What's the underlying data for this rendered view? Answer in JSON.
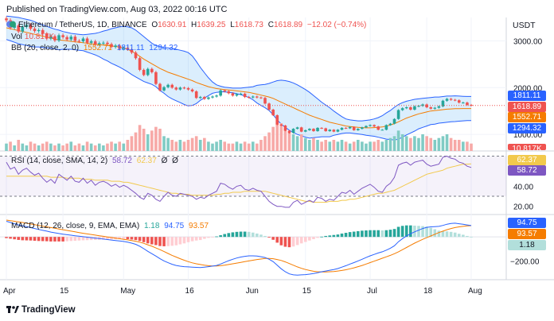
{
  "header": {
    "published": "Published on TradingView.com, Aug 03, 2022 00:16 UTC"
  },
  "currency": "USDT",
  "legend": {
    "pair": "Ethereum / TetherUS, 1D, BINANCE",
    "ohlc": [
      {
        "k": "O",
        "v": "1630.91"
      },
      {
        "k": "H",
        "v": "1639.25"
      },
      {
        "k": "L",
        "v": "1618.73"
      },
      {
        "k": "C",
        "v": "1618.89"
      }
    ],
    "change": "−12.02 (−0.74%)",
    "vol_label": "Vol",
    "vol_value": "10.817K",
    "bb_label": "BB (20, close, 2, 0)",
    "bb_values": [
      "1552.71",
      "1811.11",
      "1294.32"
    ],
    "rsi_label": "RSI (14, close, SMA, 14, 2)",
    "rsi_values": [
      "58.72",
      "62.37",
      "Ø",
      "Ø"
    ],
    "macd_label": "MACD (12, 26, close, 9, EMA, EMA)",
    "macd_values": [
      "1.18",
      "94.75",
      "93.57"
    ]
  },
  "price_tags": [
    {
      "text": "1811.11",
      "color": "#2962ff"
    },
    {
      "text": "1618.89",
      "color": "#ef5350"
    },
    {
      "text": "1552.71",
      "color": "#f57c00"
    },
    {
      "text": "1294.32",
      "color": "#2962ff"
    },
    {
      "text": "10.817K",
      "color": "#ef5350"
    }
  ],
  "rsi_tags": [
    {
      "text": "62.37",
      "color": "#f2c94c"
    },
    {
      "text": "58.72",
      "color": "#7e57c2"
    }
  ],
  "macd_tags": [
    {
      "text": "94.75",
      "color": "#2962ff"
    },
    {
      "text": "93.57",
      "color": "#f57c00"
    },
    {
      "text": "1.18",
      "color": "#b2dfdb"
    }
  ],
  "brand": "TradingView",
  "colors": {
    "up": "#26a69a",
    "down": "#ef5350",
    "bb_band": "#2962ff",
    "bb_basis": "#f57c00",
    "bb_fill": "#2196f3",
    "rsi": "#7e57c2",
    "rsi_ma": "#f2c94c",
    "macd": "#2962ff",
    "signal": "#f57c00"
  },
  "chart_data": [
    {
      "type": "candlestick",
      "title": "Ethereum / TetherUS, 1D, BINANCE",
      "x_tick_labels": [
        "Apr",
        "15",
        "May",
        "16",
        "Jun",
        "15",
        "Jul",
        "18",
        "Aug"
      ],
      "y_tick_labels": [
        "3000.00",
        "2000.00",
        "1000.00"
      ],
      "ylim": [
        850,
        3500
      ],
      "close": [
        3440,
        3280,
        3330,
        3200,
        3300,
        3340,
        3260,
        3210,
        3230,
        3150,
        3050,
        3100,
        3010,
        3120,
        3080,
        3030,
        3090,
        3000,
        2990,
        3050,
        2960,
        2990,
        2920,
        2950,
        2960,
        2930,
        2870,
        2900,
        2830,
        2850,
        2820,
        2750,
        2630,
        2380,
        2270,
        2400,
        2330,
        2080,
        1940,
        2010,
        2060,
        2000,
        1960,
        2000,
        1990,
        1960,
        1920,
        1780,
        1800,
        1760,
        1790,
        1810,
        1830,
        1940,
        1920,
        1880,
        1830,
        1860,
        1870,
        1800,
        1790,
        1810,
        1790,
        1780,
        1660,
        1530,
        1410,
        1210,
        1190,
        1080,
        1030,
        1120,
        1150,
        1060,
        1090,
        1120,
        1070,
        1140,
        1130,
        1070,
        1100,
        1060,
        1100,
        1140,
        1130,
        1160,
        1090,
        1120,
        1150,
        1180,
        1200,
        1170,
        1100,
        1100,
        1200,
        1230,
        1330,
        1520,
        1560,
        1580,
        1530,
        1600,
        1610,
        1640,
        1580,
        1550,
        1570,
        1600,
        1720,
        1760,
        1740,
        1730,
        1680,
        1680,
        1630,
        1618.89
      ],
      "bb_upper": [
        3530,
        3520,
        3510,
        3500,
        3480,
        3460,
        3440,
        3410,
        3370,
        3340,
        3310,
        3280,
        3250,
        3230,
        3200,
        3180,
        3160,
        3150,
        3140,
        3130,
        3140,
        3150,
        3160,
        3180,
        3210,
        3230,
        3260,
        3280,
        3300,
        3310,
        3300,
        3280,
        3230,
        3160,
        3090,
        3020,
        2950,
        2900,
        2880,
        2860,
        2850,
        2840,
        2820,
        2800,
        2780,
        2750,
        2680,
        2560,
        2430,
        2320,
        2210,
        2120,
        2060,
        2030,
        2010,
        2000,
        1990,
        1990,
        1990,
        2000,
        2010,
        2020,
        2050,
        2060,
        2070,
        2090,
        2120,
        2150,
        2160,
        2150,
        2130,
        2100,
        2060,
        2010,
        1960,
        1900,
        1830,
        1760,
        1690,
        1630,
        1570,
        1500,
        1440,
        1380,
        1330,
        1310,
        1300,
        1290,
        1290,
        1300,
        1310,
        1330,
        1360,
        1400,
        1460,
        1510,
        1580,
        1640,
        1680,
        1710,
        1730,
        1750,
        1760,
        1770,
        1780,
        1790,
        1800,
        1800,
        1810,
        1820,
        1820,
        1825,
        1820,
        1815,
        1811.11,
        1811.11
      ],
      "bb_basis": [
        3280,
        3260,
        3240,
        3220,
        3200,
        3180,
        3160,
        3140,
        3120,
        3100,
        3080,
        3060,
        3040,
        3020,
        3010,
        3000,
        2990,
        2980,
        2970,
        2960,
        2950,
        2940,
        2930,
        2920,
        2910,
        2900,
        2890,
        2880,
        2870,
        2850,
        2820,
        2780,
        2730,
        2670,
        2610,
        2560,
        2510,
        2460,
        2410,
        2370,
        2330,
        2300,
        2270,
        2240,
        2210,
        2180,
        2150,
        2110,
        2080,
        2050,
        2020,
        2000,
        1980,
        1970,
        1960,
        1950,
        1940,
        1930,
        1920,
        1910,
        1900,
        1880,
        1860,
        1840,
        1820,
        1800,
        1770,
        1730,
        1690,
        1650,
        1610,
        1570,
        1530,
        1490,
        1450,
        1410,
        1380,
        1350,
        1320,
        1290,
        1260,
        1240,
        1220,
        1200,
        1180,
        1170,
        1160,
        1150,
        1145,
        1140,
        1140,
        1145,
        1150,
        1160,
        1180,
        1200,
        1230,
        1270,
        1310,
        1350,
        1380,
        1410,
        1440,
        1460,
        1480,
        1500,
        1510,
        1520,
        1530,
        1540,
        1545,
        1550,
        1552,
        1552.71,
        1552.71,
        1552.71
      ],
      "bb_lower": [
        3030,
        3000,
        2970,
        2940,
        2920,
        2900,
        2880,
        2870,
        2870,
        2860,
        2850,
        2840,
        2830,
        2810,
        2820,
        2820,
        2820,
        2810,
        2800,
        2790,
        2760,
        2730,
        2700,
        2660,
        2610,
        2570,
        2520,
        2480,
        2440,
        2390,
        2340,
        2280,
        2230,
        2180,
        2130,
        2100,
        2070,
        2020,
        1940,
        1880,
        1810,
        1760,
        1720,
        1680,
        1640,
        1610,
        1620,
        1660,
        1730,
        1780,
        1830,
        1880,
        1900,
        1910,
        1910,
        1900,
        1890,
        1870,
        1850,
        1820,
        1790,
        1740,
        1670,
        1620,
        1570,
        1510,
        1420,
        1310,
        1220,
        1150,
        1090,
        1040,
        1000,
        970,
        940,
        920,
        930,
        940,
        950,
        950,
        950,
        980,
        1000,
        1020,
        1030,
        1030,
        1020,
        1010,
        1000,
        980,
        970,
        960,
        940,
        920,
        900,
        890,
        880,
        900,
        940,
        990,
        1030,
        1070,
        1120,
        1150,
        1180,
        1210,
        1220,
        1240,
        1250,
        1260,
        1270,
        1275,
        1284,
        1290,
        1294.32,
        1294.32
      ],
      "volume": [
        4,
        5,
        3,
        6,
        4,
        3,
        5,
        4,
        3,
        4,
        5,
        4,
        3,
        4,
        3,
        4,
        5,
        3,
        4,
        3,
        5,
        4,
        3,
        4,
        3,
        4,
        5,
        4,
        5,
        4,
        6,
        8,
        10,
        14,
        12,
        9,
        11,
        13,
        12,
        8,
        7,
        6,
        5,
        6,
        5,
        6,
        7,
        8,
        6,
        7,
        5,
        4,
        5,
        6,
        5,
        4,
        4,
        5,
        4,
        5,
        4,
        5,
        4,
        6,
        8,
        10,
        13,
        18,
        15,
        12,
        10,
        9,
        8,
        9,
        7,
        6,
        7,
        6,
        5,
        6,
        5,
        6,
        5,
        6,
        5,
        4,
        5,
        6,
        5,
        4,
        5,
        5,
        6,
        5,
        6,
        7,
        8,
        11,
        9,
        8,
        7,
        8,
        7,
        9,
        8,
        7,
        6,
        7,
        8,
        9,
        7,
        6,
        6,
        5,
        5,
        4
      ],
      "volume_unit": "K (relative)"
    },
    {
      "type": "line",
      "title": "RSI (14, close, SMA, 14, 2)",
      "y_tick_labels": [
        "60.00",
        "40.00",
        "20.00"
      ],
      "ylim": [
        15,
        72
      ],
      "bands": [
        70,
        30
      ],
      "series": [
        {
          "name": "RSI",
          "values": [
            64,
            57,
            59,
            52,
            56,
            58,
            54,
            51,
            53,
            48,
            44,
            47,
            43,
            52,
            49,
            46,
            50,
            45,
            44,
            48,
            43,
            46,
            41,
            44,
            45,
            43,
            40,
            42,
            39,
            41,
            39,
            36,
            33,
            29,
            27,
            33,
            31,
            27,
            25,
            30,
            34,
            31,
            30,
            33,
            32,
            31,
            30,
            27,
            29,
            28,
            31,
            33,
            35,
            43,
            42,
            39,
            37,
            40,
            41,
            37,
            36,
            38,
            36,
            35,
            30,
            25,
            22,
            20,
            20,
            19,
            19,
            24,
            26,
            22,
            24,
            26,
            24,
            29,
            28,
            25,
            27,
            26,
            30,
            34,
            33,
            36,
            32,
            35,
            38,
            40,
            42,
            39,
            35,
            34,
            40,
            43,
            49,
            61,
            63,
            64,
            61,
            64,
            65,
            66,
            62,
            60,
            61,
            62,
            69,
            70,
            68,
            67,
            64,
            63,
            60,
            58.72
          ]
        },
        {
          "name": "RSI MA",
          "values": [
            50,
            50,
            50,
            50,
            50,
            50,
            50,
            50,
            50,
            50,
            50,
            49,
            49,
            49,
            49,
            48,
            48,
            48,
            48,
            47,
            47,
            47,
            46,
            46,
            46,
            46,
            45,
            45,
            45,
            44,
            44,
            43,
            42,
            41,
            40,
            39,
            38,
            37,
            36,
            35,
            34,
            33,
            33,
            32,
            32,
            32,
            31,
            31,
            31,
            31,
            31,
            31,
            32,
            32,
            33,
            33,
            34,
            34,
            34,
            35,
            35,
            35,
            35,
            35,
            35,
            34,
            33,
            32,
            31,
            30,
            29,
            28,
            27,
            26,
            25,
            25,
            24,
            24,
            24,
            24,
            25,
            25,
            25,
            26,
            26,
            27,
            27,
            28,
            29,
            30,
            31,
            32,
            33,
            33,
            34,
            35,
            36,
            38,
            40,
            42,
            44,
            46,
            48,
            50,
            52,
            53,
            54,
            55,
            56,
            58,
            59,
            60,
            61,
            62,
            62,
            62.37
          ]
        }
      ]
    },
    {
      "type": "line",
      "title": "MACD (12, 26, close, 9, EMA, EMA)",
      "y_tick_labels": [
        "−200.00"
      ],
      "ylim": [
        -330,
        160
      ],
      "series": [
        {
          "name": "MACD",
          "values": [
            130,
            120,
            110,
            100,
            92,
            85,
            78,
            70,
            62,
            55,
            48,
            40,
            34,
            28,
            22,
            18,
            14,
            10,
            6,
            2,
            -2,
            -6,
            -10,
            -14,
            -18,
            -22,
            -26,
            -30,
            -34,
            -38,
            -44,
            -52,
            -62,
            -78,
            -98,
            -120,
            -140,
            -160,
            -182,
            -200,
            -215,
            -228,
            -238,
            -244,
            -248,
            -250,
            -252,
            -254,
            -256,
            -252,
            -248,
            -243,
            -238,
            -226,
            -212,
            -198,
            -186,
            -176,
            -168,
            -162,
            -158,
            -158,
            -160,
            -165,
            -172,
            -186,
            -206,
            -236,
            -266,
            -290,
            -308,
            -316,
            -318,
            -316,
            -314,
            -310,
            -305,
            -298,
            -290,
            -284,
            -278,
            -272,
            -264,
            -252,
            -240,
            -226,
            -214,
            -200,
            -186,
            -172,
            -158,
            -146,
            -134,
            -124,
            -110,
            -94,
            -74,
            -40,
            -14,
            8,
            26,
            42,
            56,
            70,
            80,
            84,
            86,
            88,
            96,
            106,
            112,
            114,
            110,
            106,
            100,
            94.75
          ]
        },
        {
          "name": "Signal",
          "values": [
            140,
            135,
            130,
            125,
            120,
            114,
            108,
            102,
            96,
            90,
            84,
            78,
            72,
            66,
            60,
            54,
            48,
            42,
            36,
            30,
            25,
            20,
            15,
            10,
            5,
            0,
            -5,
            -10,
            -15,
            -20,
            -25,
            -30,
            -36,
            -44,
            -54,
            -66,
            -78,
            -92,
            -106,
            -122,
            -138,
            -154,
            -168,
            -182,
            -194,
            -206,
            -216,
            -224,
            -230,
            -236,
            -240,
            -242,
            -242,
            -240,
            -236,
            -230,
            -224,
            -218,
            -212,
            -206,
            -200,
            -194,
            -188,
            -184,
            -180,
            -180,
            -182,
            -188,
            -196,
            -208,
            -222,
            -236,
            -250,
            -262,
            -272,
            -280,
            -286,
            -290,
            -292,
            -292,
            -290,
            -288,
            -284,
            -280,
            -274,
            -266,
            -258,
            -248,
            -238,
            -226,
            -214,
            -202,
            -190,
            -178,
            -166,
            -154,
            -140,
            -124,
            -106,
            -88,
            -70,
            -52,
            -36,
            -20,
            -6,
            8,
            22,
            36,
            48,
            60,
            70,
            78,
            84,
            88,
            92,
            93.57
          ]
        }
      ],
      "histogram": "MACD − Signal"
    }
  ]
}
